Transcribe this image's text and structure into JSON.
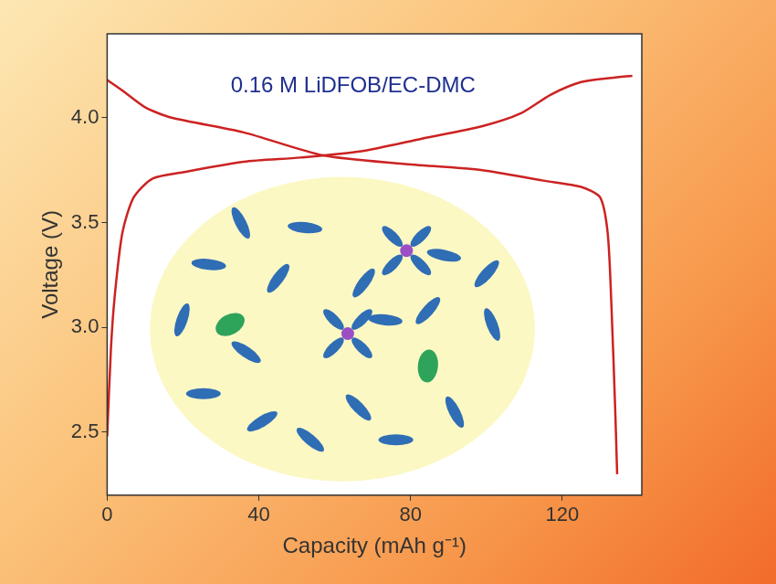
{
  "chart_data": {
    "type": "line",
    "title": "0.16 M LiDFOB/EC-DMC",
    "x_label": "Capacity (mAh g⁻¹)",
    "y_label": "Voltage (V)",
    "series": [
      {
        "color": "#cc2222",
        "x": [
          0,
          1,
          2,
          4,
          7,
          12,
          20,
          36,
          51,
          67,
          83,
          99,
          109,
          117,
          125,
          133,
          138.5
        ],
        "values": [
          2.48,
          2.9,
          3.15,
          3.45,
          3.62,
          3.71,
          3.74,
          3.79,
          3.81,
          3.84,
          3.9,
          3.96,
          4.02,
          4.11,
          4.17,
          4.19,
          4.2
        ]
      },
      {
        "color": "#cc2222",
        "x": [
          0,
          4,
          10,
          17,
          36,
          57,
          78,
          99,
          115,
          125,
          130,
          132,
          133,
          134,
          134.5
        ],
        "values": [
          4.18,
          4.13,
          4.05,
          4.0,
          3.93,
          3.82,
          3.78,
          3.75,
          3.7,
          3.67,
          3.62,
          3.45,
          3.1,
          2.6,
          2.3
        ]
      }
    ],
    "xlim": [
      0,
      141
    ],
    "xticks": [
      0,
      40,
      80,
      120
    ],
    "ylim": [
      2.2,
      4.4
    ],
    "yticks": [
      2.5,
      {
        "value": 3,
        "label": "3.0"
      },
      3.5,
      {
        "value": 4,
        "label": "4.0"
      }
    ],
    "grid": false,
    "marker": "none",
    "line_style": "solid"
  }
}
